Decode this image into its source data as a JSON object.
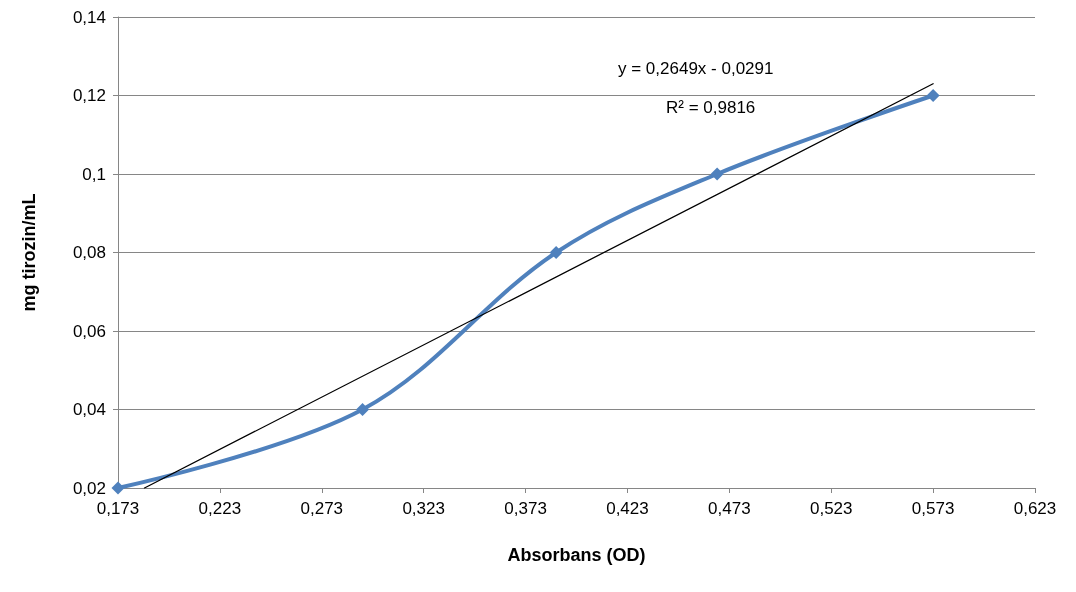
{
  "chart_data": {
    "type": "line",
    "xlabel": "Absorbans (OD)",
    "ylabel": "mg tirozin/mL",
    "series": [
      {
        "color": "#4f81bd",
        "x": [
          0.173,
          0.293,
          0.388,
          0.467,
          0.573
        ],
        "values": [
          0.02,
          0.04,
          0.08,
          0.1,
          0.12
        ],
        "marker": "diamond"
      },
      {
        "type": "line",
        "color": "#000000",
        "x": [
          0.186,
          0.573
        ],
        "values": [
          0.02,
          0.123
        ],
        "marker": "none"
      }
    ],
    "xlim": [
      0.173,
      0.623
    ],
    "xticks": [
      {
        "value": 0.173,
        "label": "0,173"
      },
      {
        "value": 0.223,
        "label": "0,223"
      },
      {
        "value": 0.273,
        "label": "0,273"
      },
      {
        "value": 0.323,
        "label": "0,323"
      },
      {
        "value": 0.373,
        "label": "0,373"
      },
      {
        "value": 0.423,
        "label": "0,423"
      },
      {
        "value": 0.473,
        "label": "0,473"
      },
      {
        "value": 0.523,
        "label": "0,523"
      },
      {
        "value": 0.573,
        "label": "0,573"
      },
      {
        "value": 0.623,
        "label": "0,623"
      }
    ],
    "ylim": [
      0.02,
      0.14
    ],
    "yticks": [
      {
        "value": 0.02,
        "label": "0,02"
      },
      {
        "value": 0.04,
        "label": "0,04"
      },
      {
        "value": 0.06,
        "label": "0,06"
      },
      {
        "value": 0.08,
        "label": "0,08"
      },
      {
        "value": 0.1,
        "label": "0,1"
      },
      {
        "value": 0.12,
        "label": "0,12"
      },
      {
        "value": 0.14,
        "label": "0,14"
      }
    ],
    "annotations": [
      "y = 0,2649x - 0,0291",
      "R² = 0,9816"
    ],
    "grid": "y"
  }
}
